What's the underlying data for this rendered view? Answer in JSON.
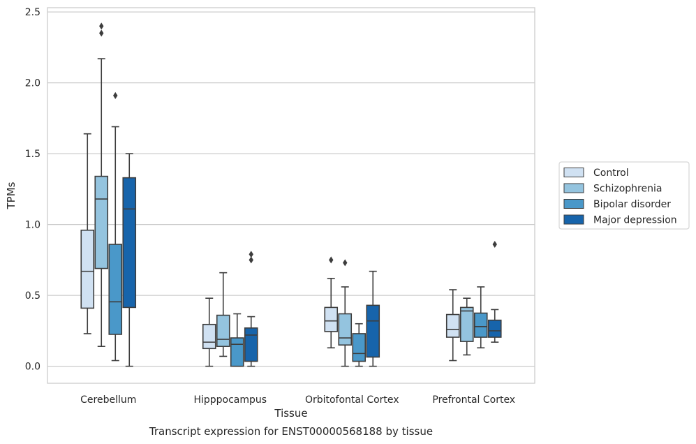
{
  "chart_data": {
    "type": "boxplot",
    "title": "",
    "caption": "Transcript expression for ENST00000568188 by tissue",
    "xlabel": "Tissue",
    "ylabel": "TPMs",
    "ylim": [
      -0.12,
      2.53
    ],
    "yticks": [
      0.0,
      0.5,
      1.0,
      1.5,
      2.0,
      2.5
    ],
    "ytick_labels": [
      "0.0",
      "0.5",
      "1.0",
      "1.5",
      "2.0",
      "2.5"
    ],
    "grid": "horizontal",
    "legend_position": "right",
    "categories": [
      "Cerebellum",
      "Hipppocampus",
      "Orbitofontal Cortex",
      "Prefrontal Cortex"
    ],
    "series": [
      {
        "name": "Control",
        "color": "#d0e1f2",
        "boxes": [
          {
            "whislo": 0.23,
            "q1": 0.41,
            "med": 0.67,
            "q3": 0.96,
            "whishi": 1.64,
            "fliers": []
          },
          {
            "whislo": 0.0,
            "q1": 0.125,
            "med": 0.17,
            "q3": 0.295,
            "whishi": 0.48,
            "fliers": []
          },
          {
            "whislo": 0.13,
            "q1": 0.245,
            "med": 0.32,
            "q3": 0.415,
            "whishi": 0.62,
            "fliers": [
              0.75
            ]
          },
          {
            "whislo": 0.04,
            "q1": 0.205,
            "med": 0.26,
            "q3": 0.365,
            "whishi": 0.54,
            "fliers": []
          }
        ]
      },
      {
        "name": "Schizophrenia",
        "color": "#94c4df",
        "boxes": [
          {
            "whislo": 0.14,
            "q1": 0.69,
            "med": 1.18,
            "q3": 1.34,
            "whishi": 2.17,
            "fliers": [
              2.35,
              2.4
            ]
          },
          {
            "whislo": 0.07,
            "q1": 0.14,
            "med": 0.19,
            "q3": 0.36,
            "whishi": 0.66,
            "fliers": []
          },
          {
            "whislo": 0.0,
            "q1": 0.15,
            "med": 0.2,
            "q3": 0.37,
            "whishi": 0.56,
            "fliers": [
              0.73
            ]
          },
          {
            "whislo": 0.08,
            "q1": 0.175,
            "med": 0.39,
            "q3": 0.415,
            "whishi": 0.48,
            "fliers": []
          }
        ]
      },
      {
        "name": "Bipolar disorder",
        "color": "#4a98c9",
        "boxes": [
          {
            "whislo": 0.04,
            "q1": 0.225,
            "med": 0.455,
            "q3": 0.86,
            "whishi": 1.69,
            "fliers": [
              1.91
            ]
          },
          {
            "whislo": 0.0,
            "q1": 0.0,
            "med": 0.155,
            "q3": 0.2,
            "whishi": 0.37,
            "fliers": []
          },
          {
            "whislo": 0.0,
            "q1": 0.035,
            "med": 0.09,
            "q3": 0.23,
            "whishi": 0.3,
            "fliers": []
          },
          {
            "whislo": 0.13,
            "q1": 0.205,
            "med": 0.28,
            "q3": 0.375,
            "whishi": 0.56,
            "fliers": []
          }
        ]
      },
      {
        "name": "Major depression",
        "color": "#1764ab",
        "boxes": [
          {
            "whislo": 0.0,
            "q1": 0.415,
            "med": 1.11,
            "q3": 1.33,
            "whishi": 1.5,
            "fliers": []
          },
          {
            "whislo": 0.0,
            "q1": 0.035,
            "med": 0.22,
            "q3": 0.27,
            "whishi": 0.35,
            "fliers": [
              0.75,
              0.79
            ]
          },
          {
            "whislo": 0.0,
            "q1": 0.065,
            "med": 0.32,
            "q3": 0.43,
            "whishi": 0.67,
            "fliers": []
          },
          {
            "whislo": 0.17,
            "q1": 0.205,
            "med": 0.25,
            "q3": 0.325,
            "whishi": 0.4,
            "fliers": [
              0.86
            ]
          }
        ]
      }
    ]
  }
}
